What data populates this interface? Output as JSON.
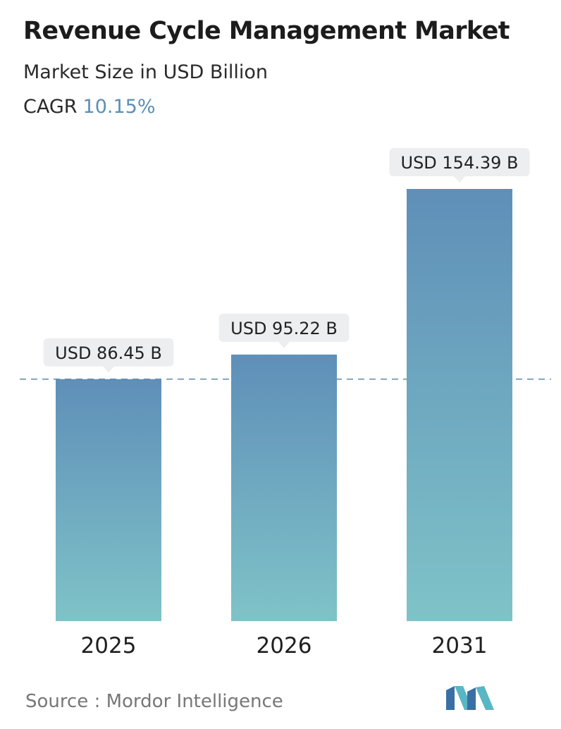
{
  "header": {
    "title": "Revenue Cycle Management Market",
    "subtitle": "Market Size in USD Billion",
    "cagr_label": "CAGR",
    "cagr_value": "10.15%"
  },
  "chart_data": {
    "type": "bar",
    "categories": [
      "2025",
      "2026",
      "2031"
    ],
    "values": [
      86.45,
      95.22,
      154.39
    ],
    "value_labels": [
      "USD 86.45 B",
      "USD 95.22 B",
      "USD 154.39 B"
    ],
    "title": "Revenue Cycle Management Market",
    "ylabel": "Market Size in USD Billion",
    "grid": false,
    "reference_line": 86.45
  },
  "footer": {
    "source": "Source :  Mordor Intelligence",
    "logo_icon": "mordor-intelligence-logo-icon"
  },
  "colors": {
    "bar_top": "#5f8fb8",
    "bar_bottom": "#7fc3c8",
    "label_bg": "#eceeef",
    "dashed_line": "#5d8ea8",
    "accent": "#5b8fb3"
  }
}
